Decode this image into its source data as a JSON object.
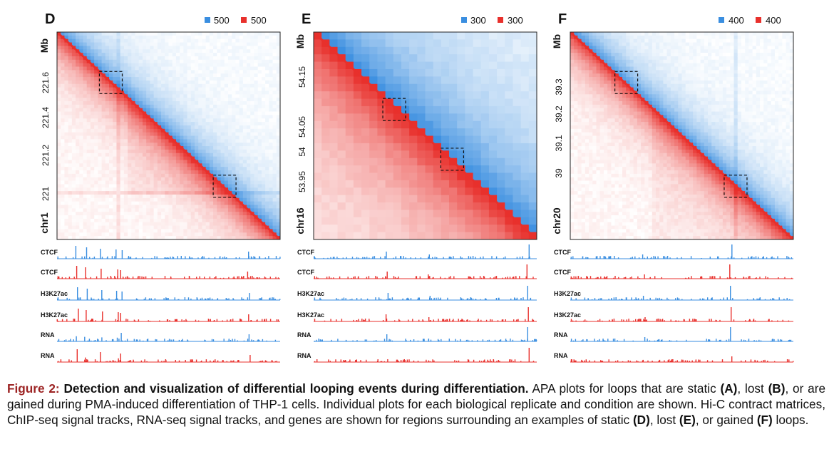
{
  "panels": [
    {
      "letter": "D",
      "legend": [
        "500",
        "500"
      ],
      "unit": "Mb",
      "chrom": "chr1",
      "ticks": [
        "221.6",
        "221.4",
        "221.2",
        "221"
      ],
      "map": {
        "cols": 60,
        "loop_static": true
      }
    },
    {
      "letter": "E",
      "legend": [
        "300",
        "300"
      ],
      "unit": "Mb",
      "chrom": "chr16",
      "ticks": [
        "54.15",
        "54.05",
        "54",
        "53.95"
      ],
      "map": {
        "cols": 28,
        "loop_static": false
      }
    },
    {
      "letter": "F",
      "legend": [
        "400",
        "400"
      ],
      "unit": "Mb",
      "chrom": "chr20",
      "ticks": [
        "39.3",
        "39.2",
        "39.1",
        "39"
      ],
      "map": {
        "cols": 60,
        "loop_static": false
      }
    }
  ],
  "track_labels": [
    "CTCF",
    "CTCF",
    "H3K27ac",
    "H3K27ac",
    "RNA",
    "RNA"
  ],
  "colors": {
    "blue": "#3a8ee0",
    "red": "#e8302c",
    "caption_accent": "#9c2323"
  },
  "caption": {
    "figure_label": "Figure 2:",
    "title": "Detection and visualization of differential looping events during differentiation.",
    "text_1": " APA plots for loops that are static ",
    "ref_a": "(A)",
    "text_2": ", lost ",
    "ref_b": "(B)",
    "text_3": ", or are gained during PMA-induced differentiation of THP-1 cells.  Individual plots for each biological replicate and condition are shown.  Hi-C contract matrices, ChIP-seq signal tracks, RNA-seq signal tracks, and genes are shown for regions surrounding an examples of static ",
    "ref_d": "(D)",
    "text_4": ", lost ",
    "ref_e": "(E)",
    "text_5": ", or gained ",
    "ref_f": "(F)",
    "text_6": " loops."
  }
}
